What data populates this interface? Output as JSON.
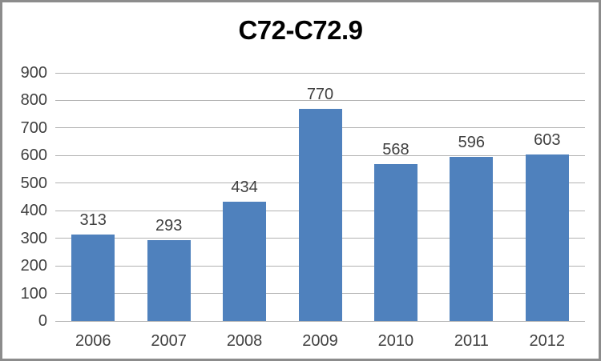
{
  "chart_data": {
    "type": "bar",
    "title": "C72-C72.9",
    "categories": [
      "2006",
      "2007",
      "2008",
      "2009",
      "2010",
      "2011",
      "2012"
    ],
    "values": [
      313,
      293,
      434,
      770,
      568,
      596,
      603
    ],
    "xlabel": "",
    "ylabel": "",
    "ylim": [
      0,
      900
    ],
    "ytick_step": 100,
    "yticks": [
      0,
      100,
      200,
      300,
      400,
      500,
      600,
      700,
      800,
      900
    ],
    "grid": true,
    "legend": "none",
    "data_labels": true,
    "colors": {
      "bar_fill": "#4f81bd",
      "gridline": "#b2b2b2",
      "tick_label": "#404040",
      "title": "#000000",
      "frame_border": "#8c8c8c",
      "background": "#ffffff"
    }
  }
}
